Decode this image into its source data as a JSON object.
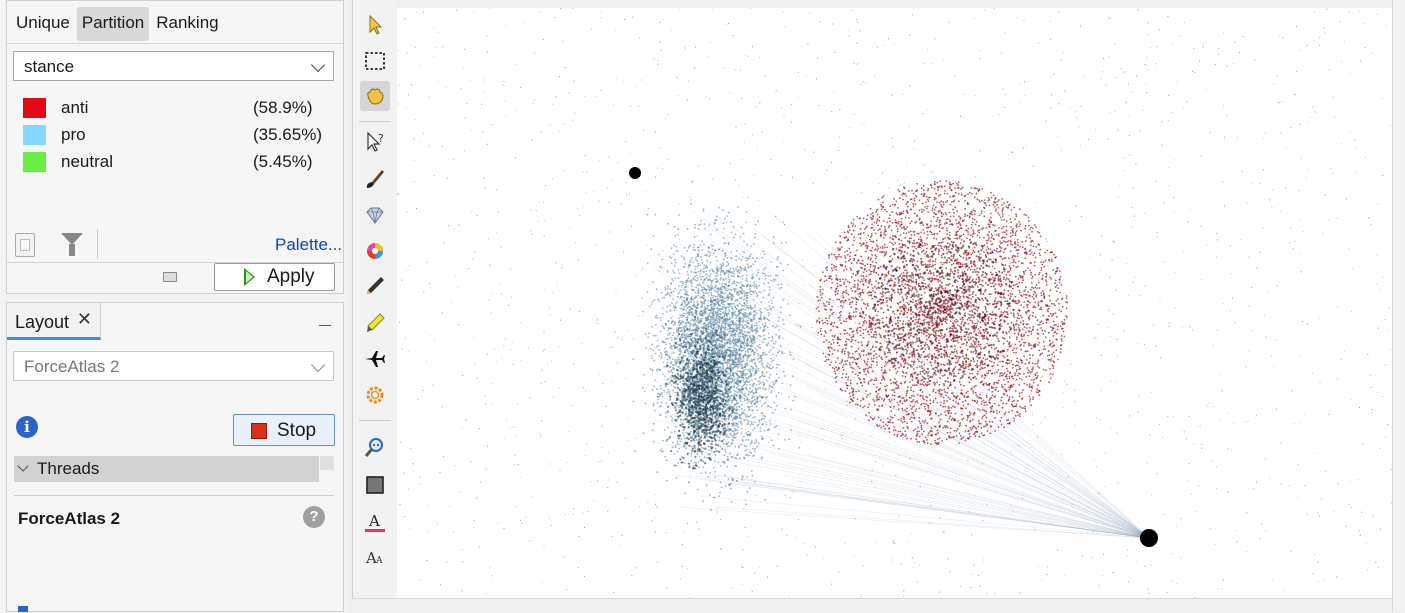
{
  "appearance": {
    "subtabs": [
      "Unique",
      "Partition",
      "Ranking"
    ],
    "attribute": "stance",
    "legend": [
      {
        "label": "anti",
        "percent": "(58.9%)",
        "color": "#e30a17"
      },
      {
        "label": "pro",
        "percent": "(35.65%)",
        "color": "#87d6ff"
      },
      {
        "label": "neutral",
        "percent": "(5.45%)",
        "color": "#66f045"
      }
    ],
    "palette_link": "Palette...",
    "apply_label": "Apply"
  },
  "layout": {
    "tab_label": "Layout",
    "tab_close": "✕",
    "algorithm": "ForceAtlas 2",
    "info_glyph": "i",
    "stop_label": "Stop",
    "threads_label": "Threads",
    "section_title": "ForceAtlas 2",
    "help_glyph": "?"
  },
  "toolbar": {
    "tools": [
      "select-arrow-icon",
      "rectangle-select-icon",
      "hand-drag-icon",
      "edit-node-icon",
      "brush-icon",
      "diamond-icon",
      "color-wheel-icon",
      "pencil-icon",
      "highlighter-icon",
      "airplane-icon",
      "sun-icon",
      "zoom-icon",
      "square-icon",
      "text-color-icon",
      "text-size-icon"
    ]
  },
  "graph": {
    "clusters": [
      {
        "name": "pro",
        "color": "#4a7a9a"
      },
      {
        "name": "anti",
        "color": "#a3101a"
      },
      {
        "name": "hub",
        "color": "#000000"
      }
    ]
  }
}
